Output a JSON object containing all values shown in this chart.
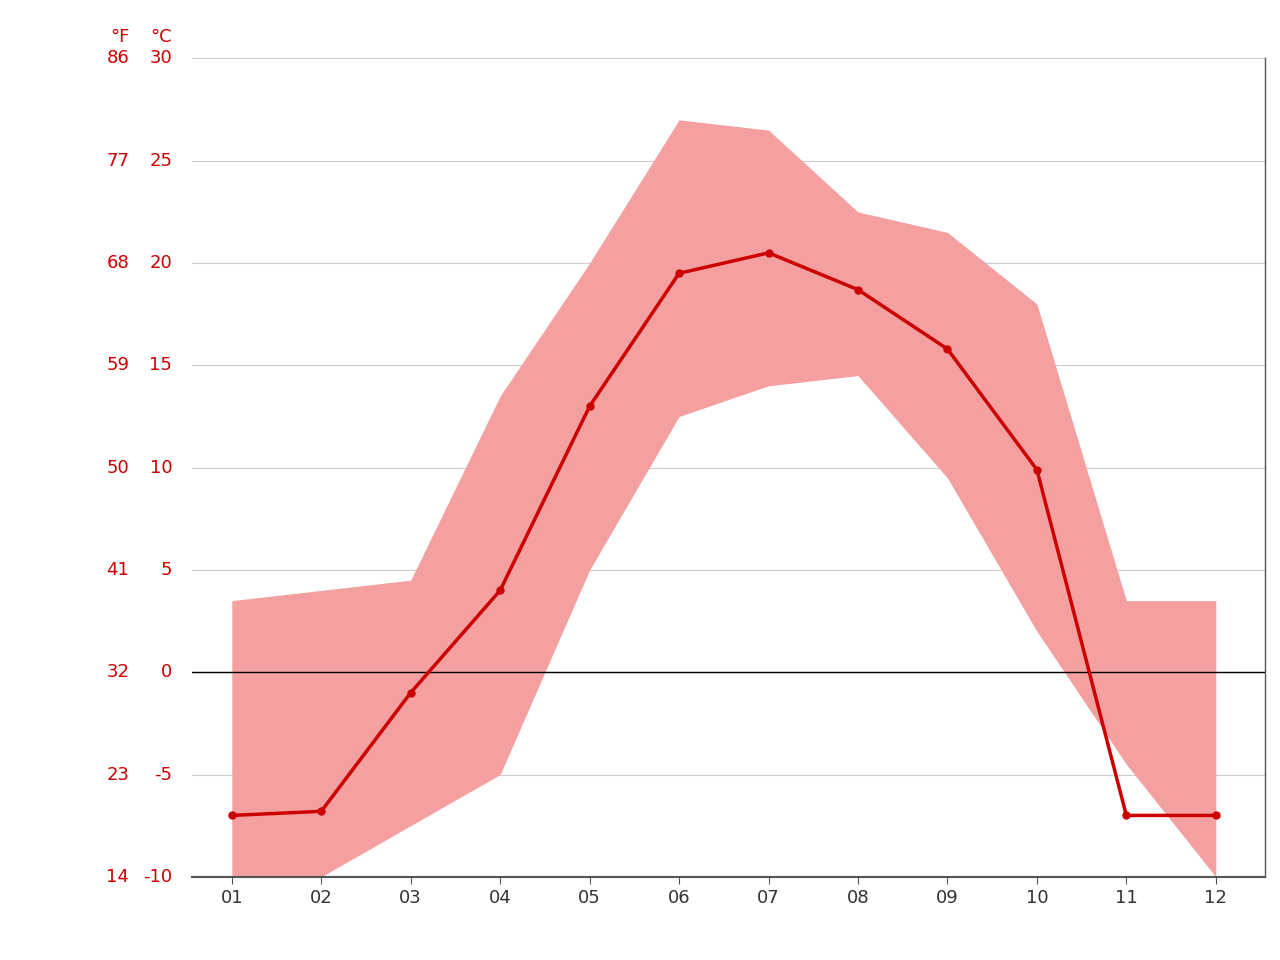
{
  "months": [
    1,
    2,
    3,
    4,
    5,
    6,
    7,
    8,
    9,
    10,
    11,
    12
  ],
  "month_labels": [
    "01",
    "02",
    "03",
    "04",
    "05",
    "06",
    "07",
    "08",
    "09",
    "10",
    "11",
    "12"
  ],
  "avg_temp_c": [
    -7.0,
    -6.8,
    -1.0,
    4.0,
    13.0,
    19.5,
    20.5,
    18.7,
    15.8,
    9.9,
    -7.0,
    -7.0
  ],
  "max_temp_c": [
    3.5,
    4.0,
    4.5,
    13.5,
    20.0,
    27.0,
    26.5,
    22.5,
    21.5,
    18.0,
    3.5,
    3.5
  ],
  "min_temp_c": [
    -10.0,
    -10.0,
    -7.5,
    -5.0,
    5.0,
    12.5,
    14.0,
    14.5,
    9.5,
    2.0,
    -4.5,
    -10.0
  ],
  "zero_line_color": "#000000",
  "mean_line_color": "#cc0000",
  "band_color": "#f4a0a0",
  "band_alpha": 1.0,
  "ylim_c": [
    -10,
    30
  ],
  "xlim": [
    0.55,
    12.55
  ],
  "yticks_c": [
    -10,
    -5,
    0,
    5,
    10,
    15,
    20,
    25,
    30
  ],
  "yticks_f": [
    14,
    23,
    32,
    41,
    50,
    59,
    68,
    77,
    86
  ],
  "background_color": "#ffffff",
  "grid_color": "#cccccc",
  "tick_label_color": "#cc0000",
  "line_width": 2.5,
  "marker_size": 5
}
